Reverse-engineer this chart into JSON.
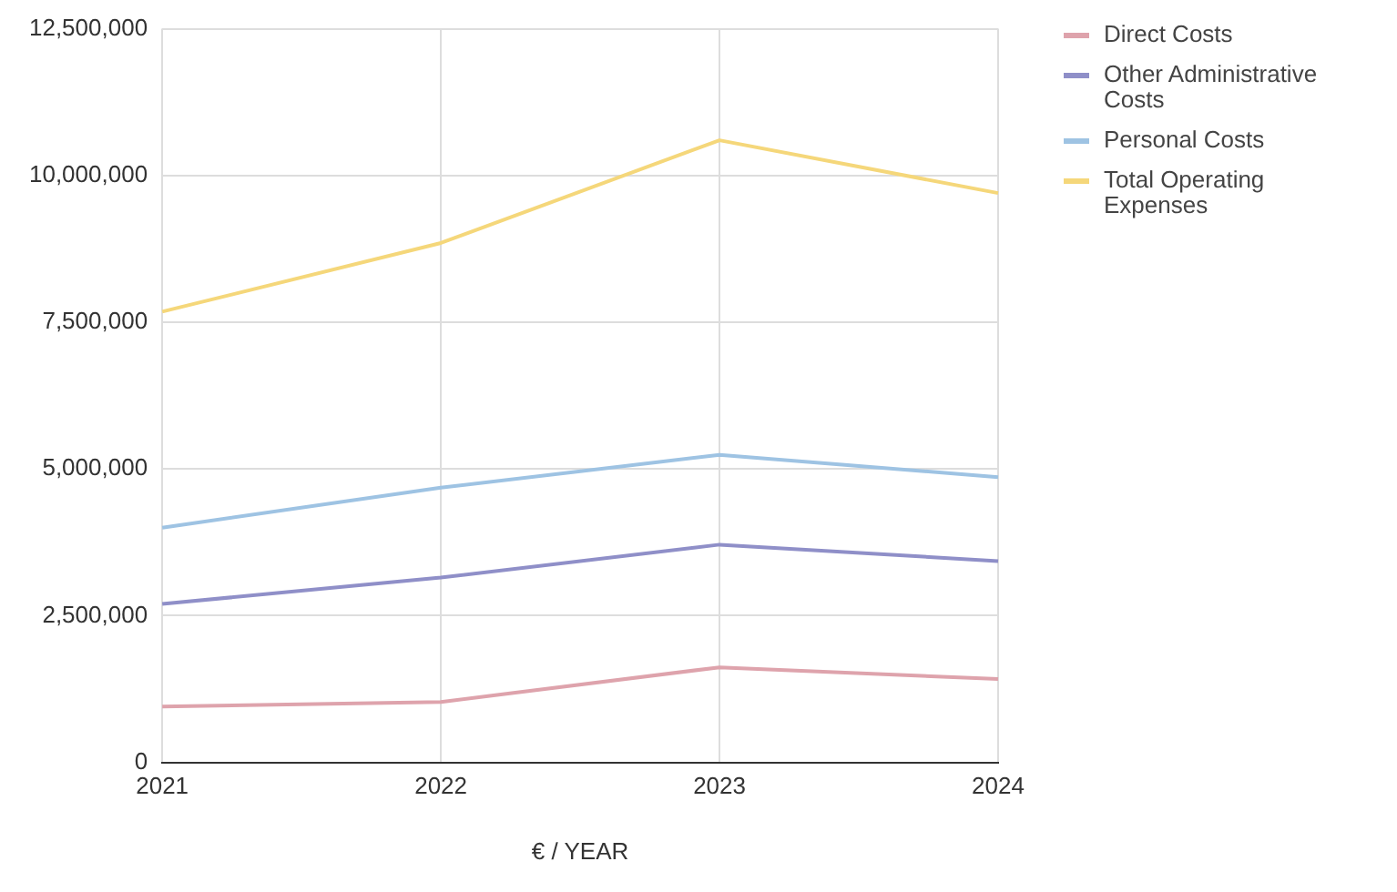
{
  "chart_data": {
    "type": "line",
    "xlabel": "€ / YEAR",
    "categories": [
      "2021",
      "2022",
      "2023",
      "2024"
    ],
    "series": [
      {
        "name": "Direct Costs",
        "color": "#dea3ac",
        "values": [
          950000,
          1030000,
          1620000,
          1420000
        ]
      },
      {
        "name": "Other Administrative Costs",
        "color": "#8f8fc8",
        "values": [
          2700000,
          3150000,
          3710000,
          3430000
        ]
      },
      {
        "name": "Personal Costs",
        "color": "#9ec3e3",
        "values": [
          4000000,
          4680000,
          5240000,
          4860000
        ]
      },
      {
        "name": "Total Operating Expenses",
        "color": "#f5d77a",
        "values": [
          7680000,
          8850000,
          10600000,
          9700000
        ]
      }
    ],
    "ylim": [
      0,
      12500000
    ],
    "yticks": [
      0,
      {
        "value": 2500000,
        "label": "2,500,000"
      },
      {
        "value": 5000000,
        "label": "5,000,000"
      },
      {
        "value": 7500000,
        "label": "7,500,000"
      },
      {
        "value": 10000000,
        "label": "10,000,000"
      },
      {
        "value": 12500000,
        "label": "12,500,000"
      }
    ],
    "grid": true,
    "legend": "right",
    "marker": "none",
    "line_style": "solid"
  }
}
